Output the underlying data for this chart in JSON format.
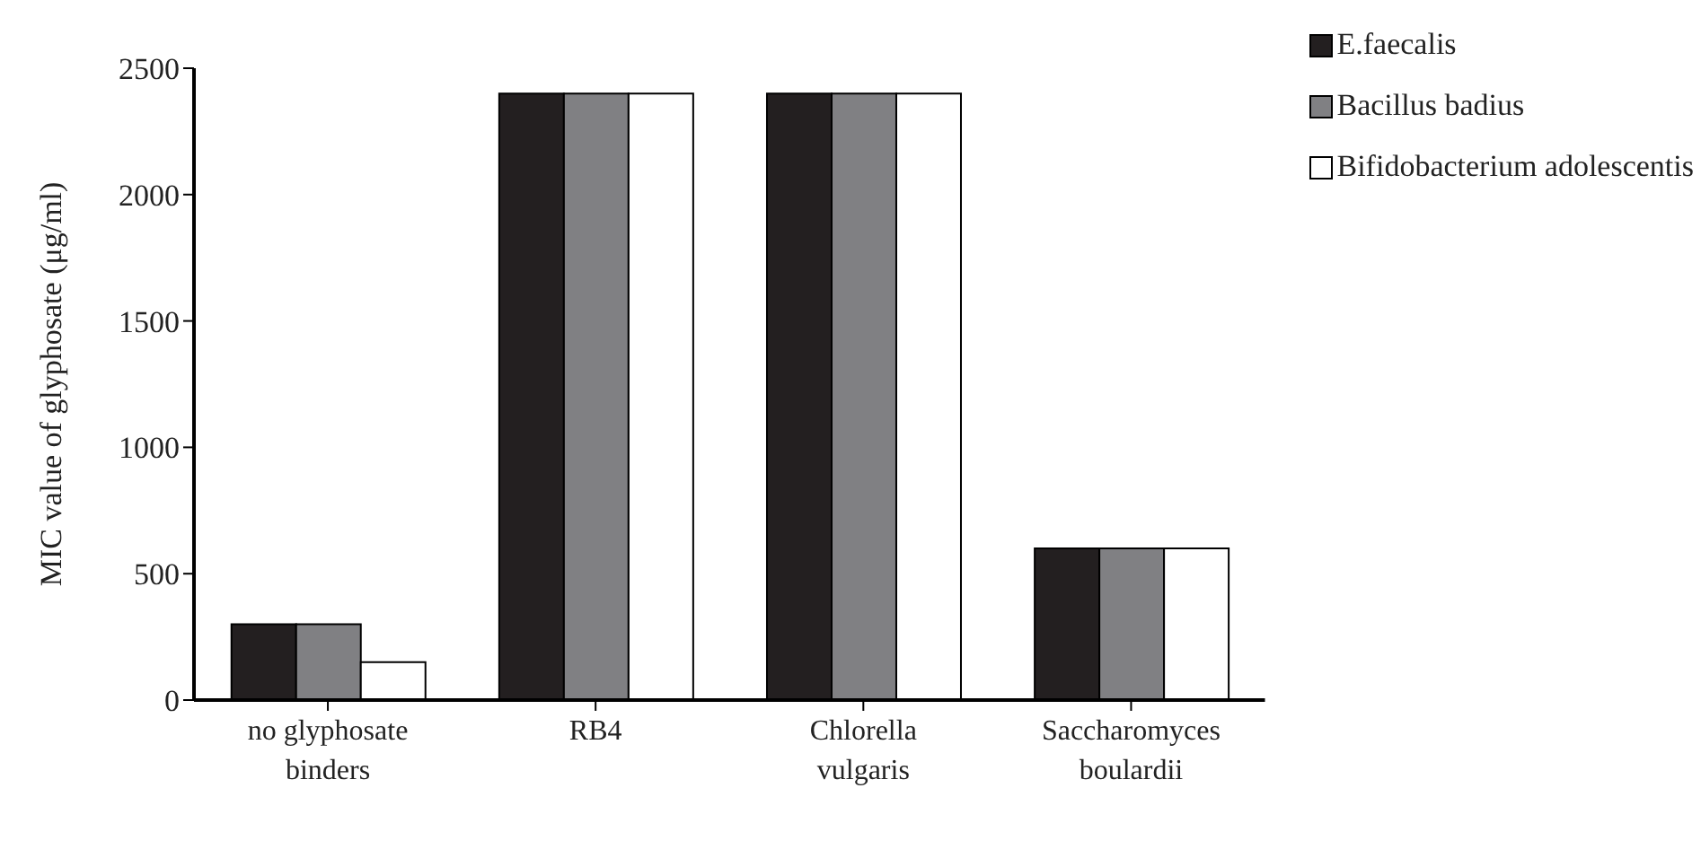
{
  "chart_data": {
    "type": "bar",
    "ylabel": "MIC value of glyphosate (μg/ml)",
    "categories": [
      "no glyphosate binders",
      "RB4",
      "Chlorella vulgaris",
      "Saccharomyces boulardii"
    ],
    "series": [
      {
        "name": "E.faecalis",
        "color": "#231f20",
        "values": [
          300,
          2400,
          2400,
          600
        ]
      },
      {
        "name": "Bacillus badius",
        "color": "#808083",
        "values": [
          300,
          2400,
          2400,
          600
        ]
      },
      {
        "name": "Bifidobacterium adolescentis",
        "color": "#ffffff",
        "values": [
          150,
          2400,
          2400,
          600
        ]
      }
    ],
    "ylim": [
      0,
      2500
    ],
    "yticks": [
      0,
      500,
      1000,
      1500,
      2000,
      2500
    ],
    "grid": false,
    "legend": "top right"
  }
}
